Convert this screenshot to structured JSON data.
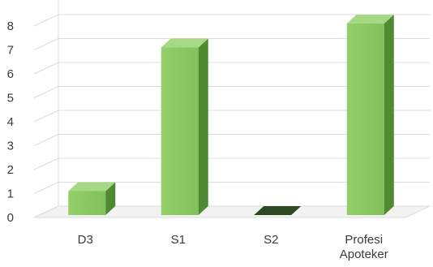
{
  "chart_data": {
    "type": "bar",
    "style": "3d-column",
    "categories": [
      [
        "D3"
      ],
      [
        "S1"
      ],
      [
        "S2"
      ],
      [
        "Profesi",
        "Apoteker"
      ]
    ],
    "values": [
      1,
      7,
      0,
      8
    ],
    "ylim": [
      0,
      8
    ],
    "yticks": [
      0,
      1,
      2,
      3,
      4,
      5,
      6,
      7,
      8
    ],
    "grid": true,
    "legend": "none",
    "colors": {
      "front": "#82c25a",
      "front_light": "#94cf6a",
      "side": "#4f8a33",
      "top": "#a7d886",
      "floor": "#f2f2f2",
      "grid": "#dcdcdc",
      "wall": "#ffffff",
      "zero_bar": "#2f4a22"
    }
  }
}
